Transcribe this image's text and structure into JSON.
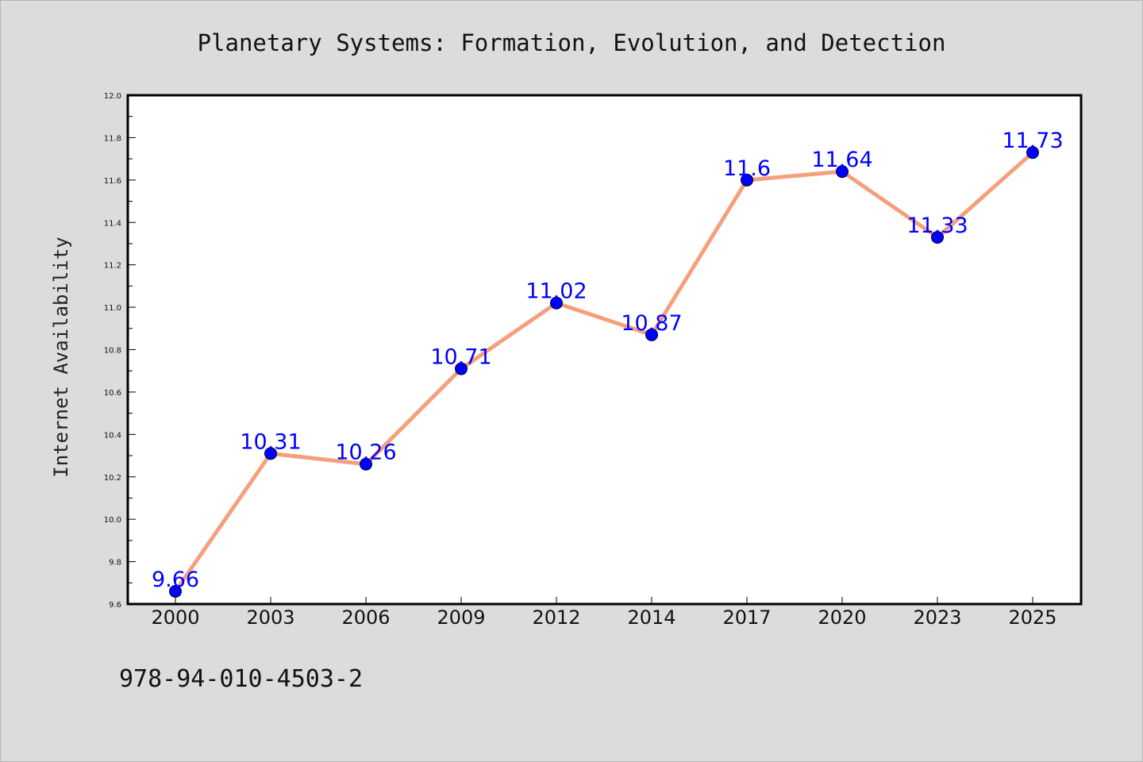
{
  "chart_data": {
    "type": "line",
    "title": "Planetary Systems: Formation, Evolution, and Detection",
    "xlabel": "",
    "ylabel": "Internet Availability",
    "categories": [
      "2000",
      "2003",
      "2006",
      "2009",
      "2012",
      "2014",
      "2017",
      "2020",
      "2023",
      "2025"
    ],
    "values": [
      9.66,
      10.31,
      10.26,
      10.71,
      11.02,
      10.87,
      11.6,
      11.64,
      11.33,
      11.73
    ],
    "data_labels": [
      "9.66",
      "10.31",
      "10.26",
      "10.71",
      "11.02",
      "10.87",
      "11.6",
      "11.64",
      "11.33",
      "11.73"
    ],
    "ylim": [
      9.6,
      12.0
    ],
    "yticks": [
      "9.6",
      "9.8",
      "10.0",
      "10.2",
      "10.4",
      "10.6",
      "10.8",
      "11.0",
      "11.2",
      "11.4",
      "11.6",
      "11.8",
      "12.0"
    ],
    "grid": false,
    "legend": "none",
    "line_color": "#f5a07d",
    "marker_color": "#0000ff",
    "label_color": "#0000ff"
  },
  "footer": {
    "isbn": "978-94-010-4503-2"
  }
}
